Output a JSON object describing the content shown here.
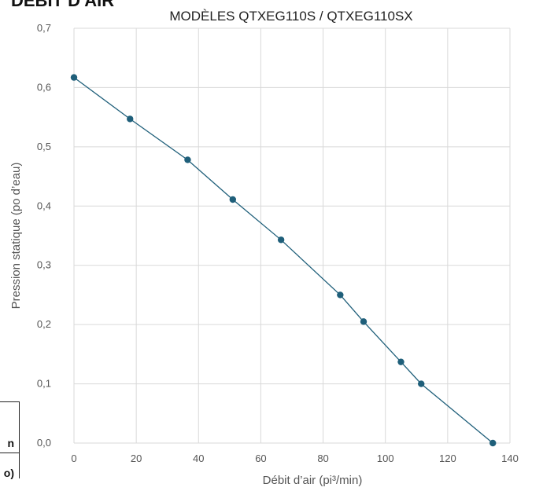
{
  "page": {
    "heading_fragment": "DÉBIT D'AIR",
    "table_fragment_cell_a": "n",
    "table_fragment_cell_b": "o)"
  },
  "chart_data": {
    "type": "line",
    "title": "MODÈLES QTXEG110S / QTXEG110SX",
    "xlabel": "Débit d’air (pi³/min)",
    "ylabel": "Pression statique (po d’eau)",
    "xlim": [
      0,
      140
    ],
    "ylim": [
      0,
      0.7
    ],
    "x_ticks": [
      "0",
      "20",
      "40",
      "60",
      "80",
      "100",
      "120",
      "140"
    ],
    "y_ticks": [
      "0,0",
      "0,1",
      "0,2",
      "0,3",
      "0,4",
      "0,5",
      "0,6",
      "0,7"
    ],
    "grid": true,
    "series": [
      {
        "color": "#1f5f7a",
        "marker": "circle",
        "x": [
          0,
          18,
          36.5,
          51,
          66.5,
          85.5,
          93,
          105,
          111.5,
          134.5
        ],
        "y": [
          0.617,
          0.547,
          0.478,
          0.411,
          0.343,
          0.25,
          0.205,
          0.137,
          0.1,
          0.0
        ]
      }
    ]
  }
}
